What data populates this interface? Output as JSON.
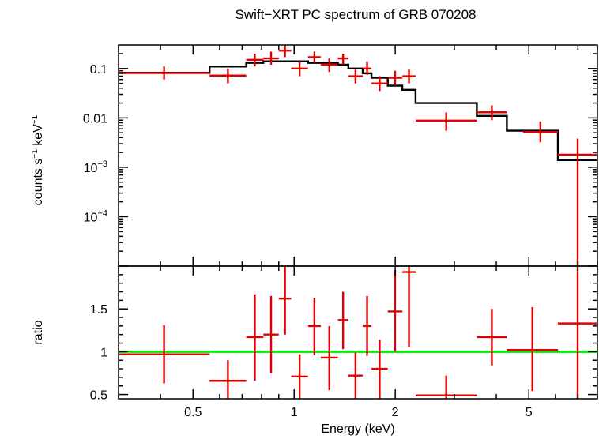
{
  "title": "Swift−XRT PC spectrum of GRB 070208",
  "colors": {
    "data": "#e00000",
    "model": "#000000",
    "unity": "#00ee00",
    "frame": "#000000"
  },
  "chart_data": [
    {
      "type": "line",
      "panel": "spectrum",
      "ylabel_main": "counts s",
      "ylabel_sup1": "−1",
      "ylabel_mid": " keV",
      "ylabel_sup2": "−1",
      "xscale": "log",
      "yscale": "log",
      "xlim": [
        0.3,
        8.0
      ],
      "ylim": [
        1e-05,
        0.3
      ],
      "yticks": [
        {
          "value": 0.1,
          "label": "0.1"
        },
        {
          "value": 0.01,
          "label": "0.01"
        },
        {
          "value": 0.001,
          "base": "10",
          "exp": "−3"
        },
        {
          "value": 0.0001,
          "base": "10",
          "exp": "−4"
        }
      ],
      "series": [
        {
          "kind": "data",
          "points": [
            {
              "x0": 0.3,
              "x1": 0.56,
              "y": 0.081,
              "ylo": 0.06,
              "yhi": 0.11
            },
            {
              "x0": 0.56,
              "x1": 0.72,
              "y": 0.072,
              "ylo": 0.05,
              "yhi": 0.1
            },
            {
              "x0": 0.72,
              "x1": 0.81,
              "y": 0.15,
              "ylo": 0.11,
              "yhi": 0.2
            },
            {
              "x0": 0.81,
              "x1": 0.9,
              "y": 0.16,
              "ylo": 0.12,
              "yhi": 0.22
            },
            {
              "x0": 0.9,
              "x1": 0.98,
              "y": 0.23,
              "ylo": 0.17,
              "yhi": 0.3
            },
            {
              "x0": 0.98,
              "x1": 1.1,
              "y": 0.1,
              "ylo": 0.07,
              "yhi": 0.14
            },
            {
              "x0": 1.1,
              "x1": 1.2,
              "y": 0.17,
              "ylo": 0.13,
              "yhi": 0.22
            },
            {
              "x0": 1.2,
              "x1": 1.35,
              "y": 0.12,
              "ylo": 0.085,
              "yhi": 0.16
            },
            {
              "x0": 1.35,
              "x1": 1.45,
              "y": 0.16,
              "ylo": 0.12,
              "yhi": 0.2
            },
            {
              "x0": 1.45,
              "x1": 1.6,
              "y": 0.07,
              "ylo": 0.05,
              "yhi": 0.095
            },
            {
              "x0": 1.6,
              "x1": 1.7,
              "y": 0.1,
              "ylo": 0.075,
              "yhi": 0.14
            },
            {
              "x0": 1.7,
              "x1": 1.9,
              "y": 0.05,
              "ylo": 0.035,
              "yhi": 0.07
            },
            {
              "x0": 1.9,
              "x1": 2.1,
              "y": 0.065,
              "ylo": 0.045,
              "yhi": 0.09
            },
            {
              "x0": 2.1,
              "x1": 2.3,
              "y": 0.07,
              "ylo": 0.05,
              "yhi": 0.095
            },
            {
              "x0": 2.3,
              "x1": 3.5,
              "y": 0.0088,
              "ylo": 0.0055,
              "yhi": 0.013
            },
            {
              "x0": 3.5,
              "x1": 4.3,
              "y": 0.013,
              "ylo": 0.009,
              "yhi": 0.018
            },
            {
              "x0": 4.8,
              "x1": 6.1,
              "y": 0.0052,
              "ylo": 0.0032,
              "yhi": 0.0085
            },
            {
              "x0": 6.1,
              "x1": 8.0,
              "y": 0.0018,
              "ylo": 1e-05,
              "yhi": 0.0038
            }
          ]
        },
        {
          "kind": "model",
          "steps": [
            {
              "x0": 0.3,
              "x1": 0.56,
              "y": 0.082
            },
            {
              "x0": 0.56,
              "x1": 0.72,
              "y": 0.11
            },
            {
              "x0": 0.72,
              "x1": 0.81,
              "y": 0.13
            },
            {
              "x0": 0.81,
              "x1": 0.9,
              "y": 0.14
            },
            {
              "x0": 0.9,
              "x1": 1.1,
              "y": 0.14
            },
            {
              "x0": 1.1,
              "x1": 1.2,
              "y": 0.13
            },
            {
              "x0": 1.2,
              "x1": 1.35,
              "y": 0.13
            },
            {
              "x0": 1.35,
              "x1": 1.45,
              "y": 0.12
            },
            {
              "x0": 1.45,
              "x1": 1.6,
              "y": 0.1
            },
            {
              "x0": 1.6,
              "x1": 1.7,
              "y": 0.08
            },
            {
              "x0": 1.7,
              "x1": 1.9,
              "y": 0.065
            },
            {
              "x0": 1.9,
              "x1": 2.1,
              "y": 0.045
            },
            {
              "x0": 2.1,
              "x1": 2.3,
              "y": 0.037
            },
            {
              "x0": 2.3,
              "x1": 3.5,
              "y": 0.02
            },
            {
              "x0": 3.5,
              "x1": 4.3,
              "y": 0.011
            },
            {
              "x0": 4.3,
              "x1": 6.1,
              "y": 0.0055
            },
            {
              "x0": 6.1,
              "x1": 8.0,
              "y": 0.0014
            }
          ]
        }
      ]
    },
    {
      "type": "scatter",
      "panel": "ratio",
      "ylabel": "ratio",
      "xlabel": "Energy (keV)",
      "xscale": "log",
      "xlim": [
        0.3,
        8.0
      ],
      "ylim": [
        0.45,
        2.0
      ],
      "xticks": [
        {
          "value": 0.5,
          "label": "0.5"
        },
        {
          "value": 1,
          "label": "1"
        },
        {
          "value": 2,
          "label": "2"
        },
        {
          "value": 5,
          "label": "5"
        }
      ],
      "yticks": [
        {
          "value": 0.5,
          "label": "0.5"
        },
        {
          "value": 1,
          "label": "1"
        },
        {
          "value": 1.5,
          "label": "1.5"
        }
      ],
      "reference_line": 1,
      "points": [
        {
          "x0": 0.3,
          "x1": 0.56,
          "y": 0.97,
          "ylo": 0.63,
          "yhi": 1.31
        },
        {
          "x0": 0.56,
          "x1": 0.72,
          "y": 0.66,
          "ylo": 0.44,
          "yhi": 0.9
        },
        {
          "x0": 0.72,
          "x1": 0.81,
          "y": 1.17,
          "ylo": 0.66,
          "yhi": 1.67
        },
        {
          "x0": 0.81,
          "x1": 0.9,
          "y": 1.2,
          "ylo": 0.75,
          "yhi": 1.65
        },
        {
          "x0": 0.9,
          "x1": 0.98,
          "y": 1.62,
          "ylo": 1.2,
          "yhi": 2.0
        },
        {
          "x0": 0.98,
          "x1": 1.1,
          "y": 0.71,
          "ylo": 0.45,
          "yhi": 0.97
        },
        {
          "x0": 1.1,
          "x1": 1.2,
          "y": 1.3,
          "ylo": 0.96,
          "yhi": 1.63
        },
        {
          "x0": 1.2,
          "x1": 1.35,
          "y": 0.93,
          "ylo": 0.55,
          "yhi": 1.3
        },
        {
          "x0": 1.35,
          "x1": 1.45,
          "y": 1.37,
          "ylo": 1.03,
          "yhi": 1.7
        },
        {
          "x0": 1.45,
          "x1": 1.6,
          "y": 0.72,
          "ylo": 0.45,
          "yhi": 0.99
        },
        {
          "x0": 1.6,
          "x1": 1.7,
          "y": 1.3,
          "ylo": 0.95,
          "yhi": 1.65
        },
        {
          "x0": 1.7,
          "x1": 1.9,
          "y": 0.8,
          "ylo": 0.45,
          "yhi": 1.14
        },
        {
          "x0": 1.9,
          "x1": 2.1,
          "y": 1.47,
          "ylo": 1.0,
          "yhi": 1.95
        },
        {
          "x0": 2.1,
          "x1": 2.3,
          "y": 1.93,
          "ylo": 1.05,
          "yhi": 2.0
        },
        {
          "x0": 2.3,
          "x1": 3.5,
          "y": 0.49,
          "ylo": 0.45,
          "yhi": 0.72
        },
        {
          "x0": 3.5,
          "x1": 4.3,
          "y": 1.17,
          "ylo": 0.84,
          "yhi": 1.5
        },
        {
          "x0": 4.3,
          "x1": 6.1,
          "y": 1.02,
          "ylo": 0.54,
          "yhi": 1.52
        },
        {
          "x0": 6.1,
          "x1": 8.0,
          "y": 1.33,
          "ylo": 0.45,
          "yhi": 2.0
        }
      ]
    }
  ]
}
